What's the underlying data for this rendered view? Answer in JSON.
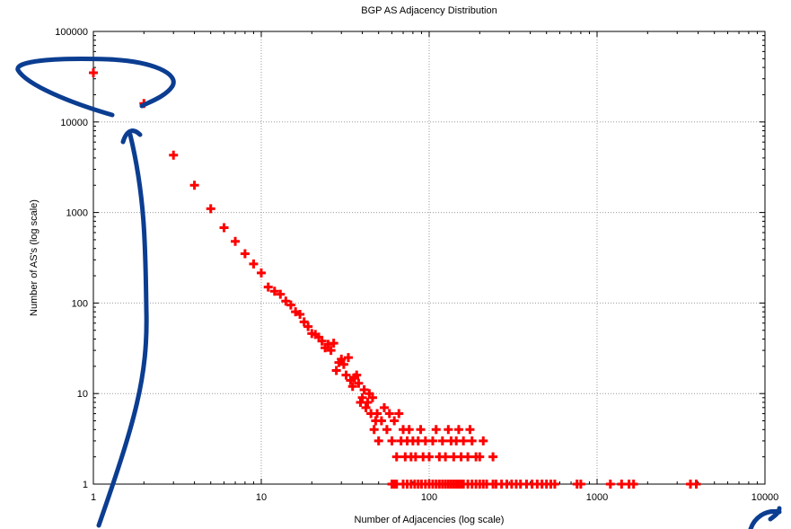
{
  "chart_data": {
    "type": "scatter",
    "title": "BGP AS Adjacency Distribution",
    "xlabel": "Number of Adjacencies (log scale)",
    "ylabel": "Number of AS's (log scale)",
    "x_scale": "log",
    "y_scale": "log",
    "xlim": [
      1,
      10000
    ],
    "ylim": [
      1,
      100000
    ],
    "grid": true,
    "legend": "none",
    "x_ticks": [
      "1",
      "10",
      "100",
      "1000",
      "10000"
    ],
    "y_ticks": [
      "1",
      "10",
      "100",
      "1000",
      "10000",
      "100000"
    ],
    "marker": "plus",
    "marker_color": "#ff0000",
    "annotation_color": "#0b3d91",
    "series": [
      {
        "points": [
          [
            1,
            35000
          ],
          [
            2,
            16000
          ],
          [
            3,
            4300
          ],
          [
            4,
            2000
          ],
          [
            5,
            1100
          ],
          [
            6,
            680
          ],
          [
            7,
            480
          ],
          [
            8,
            350
          ],
          [
            9,
            270
          ],
          [
            10,
            215
          ],
          [
            11,
            150
          ],
          [
            12,
            135
          ],
          [
            13,
            125
          ],
          [
            14,
            105
          ],
          [
            15,
            95
          ],
          [
            16,
            80
          ],
          [
            17,
            75
          ],
          [
            18,
            62
          ],
          [
            19,
            55
          ],
          [
            20,
            46
          ],
          [
            21,
            45
          ],
          [
            22,
            42
          ],
          [
            23,
            38
          ],
          [
            24,
            32
          ],
          [
            25,
            35
          ],
          [
            26,
            30
          ],
          [
            27,
            36
          ],
          [
            28,
            18
          ],
          [
            29,
            22
          ],
          [
            30,
            24
          ],
          [
            31,
            21
          ],
          [
            32,
            16
          ],
          [
            33,
            25
          ],
          [
            34,
            14
          ],
          [
            35,
            12
          ],
          [
            36,
            15
          ],
          [
            37,
            16
          ],
          [
            38,
            13
          ],
          [
            39,
            8
          ],
          [
            40,
            9
          ],
          [
            41,
            11
          ],
          [
            42,
            7
          ],
          [
            43,
            8
          ],
          [
            44,
            10
          ],
          [
            45,
            6
          ],
          [
            46,
            9
          ],
          [
            47,
            4
          ],
          [
            48,
            5
          ],
          [
            49,
            6
          ],
          [
            50,
            3
          ],
          [
            52,
            5
          ],
          [
            54,
            7
          ],
          [
            56,
            4
          ],
          [
            58,
            6
          ],
          [
            60,
            3
          ],
          [
            62,
            5
          ],
          [
            64,
            2
          ],
          [
            66,
            6
          ],
          [
            68,
            3
          ],
          [
            70,
            4
          ],
          [
            72,
            2
          ],
          [
            74,
            3
          ],
          [
            76,
            4
          ],
          [
            78,
            2
          ],
          [
            80,
            3
          ],
          [
            83,
            2
          ],
          [
            86,
            3
          ],
          [
            89,
            4
          ],
          [
            92,
            2
          ],
          [
            95,
            3
          ],
          [
            100,
            2
          ],
          [
            105,
            3
          ],
          [
            110,
            4
          ],
          [
            115,
            2
          ],
          [
            120,
            3
          ],
          [
            125,
            2
          ],
          [
            130,
            4
          ],
          [
            135,
            3
          ],
          [
            140,
            2
          ],
          [
            145,
            3
          ],
          [
            150,
            4
          ],
          [
            155,
            2
          ],
          [
            160,
            3
          ],
          [
            170,
            2
          ],
          [
            175,
            4
          ],
          [
            180,
            3
          ],
          [
            190,
            2
          ],
          [
            200,
            2
          ],
          [
            210,
            3
          ],
          [
            240,
            2
          ],
          [
            60,
            1
          ],
          [
            62,
            1
          ],
          [
            64,
            1
          ],
          [
            70,
            1
          ],
          [
            74,
            1
          ],
          [
            78,
            1
          ],
          [
            82,
            1
          ],
          [
            86,
            1
          ],
          [
            90,
            1
          ],
          [
            95,
            1
          ],
          [
            100,
            1
          ],
          [
            105,
            1
          ],
          [
            110,
            1
          ],
          [
            115,
            1
          ],
          [
            120,
            1
          ],
          [
            125,
            1
          ],
          [
            130,
            1
          ],
          [
            135,
            1
          ],
          [
            140,
            1
          ],
          [
            145,
            1
          ],
          [
            150,
            1
          ],
          [
            155,
            1
          ],
          [
            160,
            1
          ],
          [
            170,
            1
          ],
          [
            180,
            1
          ],
          [
            190,
            1
          ],
          [
            200,
            1
          ],
          [
            210,
            1
          ],
          [
            220,
            1
          ],
          [
            240,
            1
          ],
          [
            250,
            1
          ],
          [
            270,
            1
          ],
          [
            290,
            1
          ],
          [
            310,
            1
          ],
          [
            330,
            1
          ],
          [
            350,
            1
          ],
          [
            380,
            1
          ],
          [
            410,
            1
          ],
          [
            440,
            1
          ],
          [
            470,
            1
          ],
          [
            500,
            1
          ],
          [
            530,
            1
          ],
          [
            560,
            1
          ],
          [
            760,
            1
          ],
          [
            800,
            1
          ],
          [
            1200,
            1
          ],
          [
            1400,
            1
          ],
          [
            1550,
            1
          ],
          [
            1650,
            1
          ],
          [
            3600,
            1
          ],
          [
            3900,
            1
          ]
        ]
      }
    ]
  }
}
